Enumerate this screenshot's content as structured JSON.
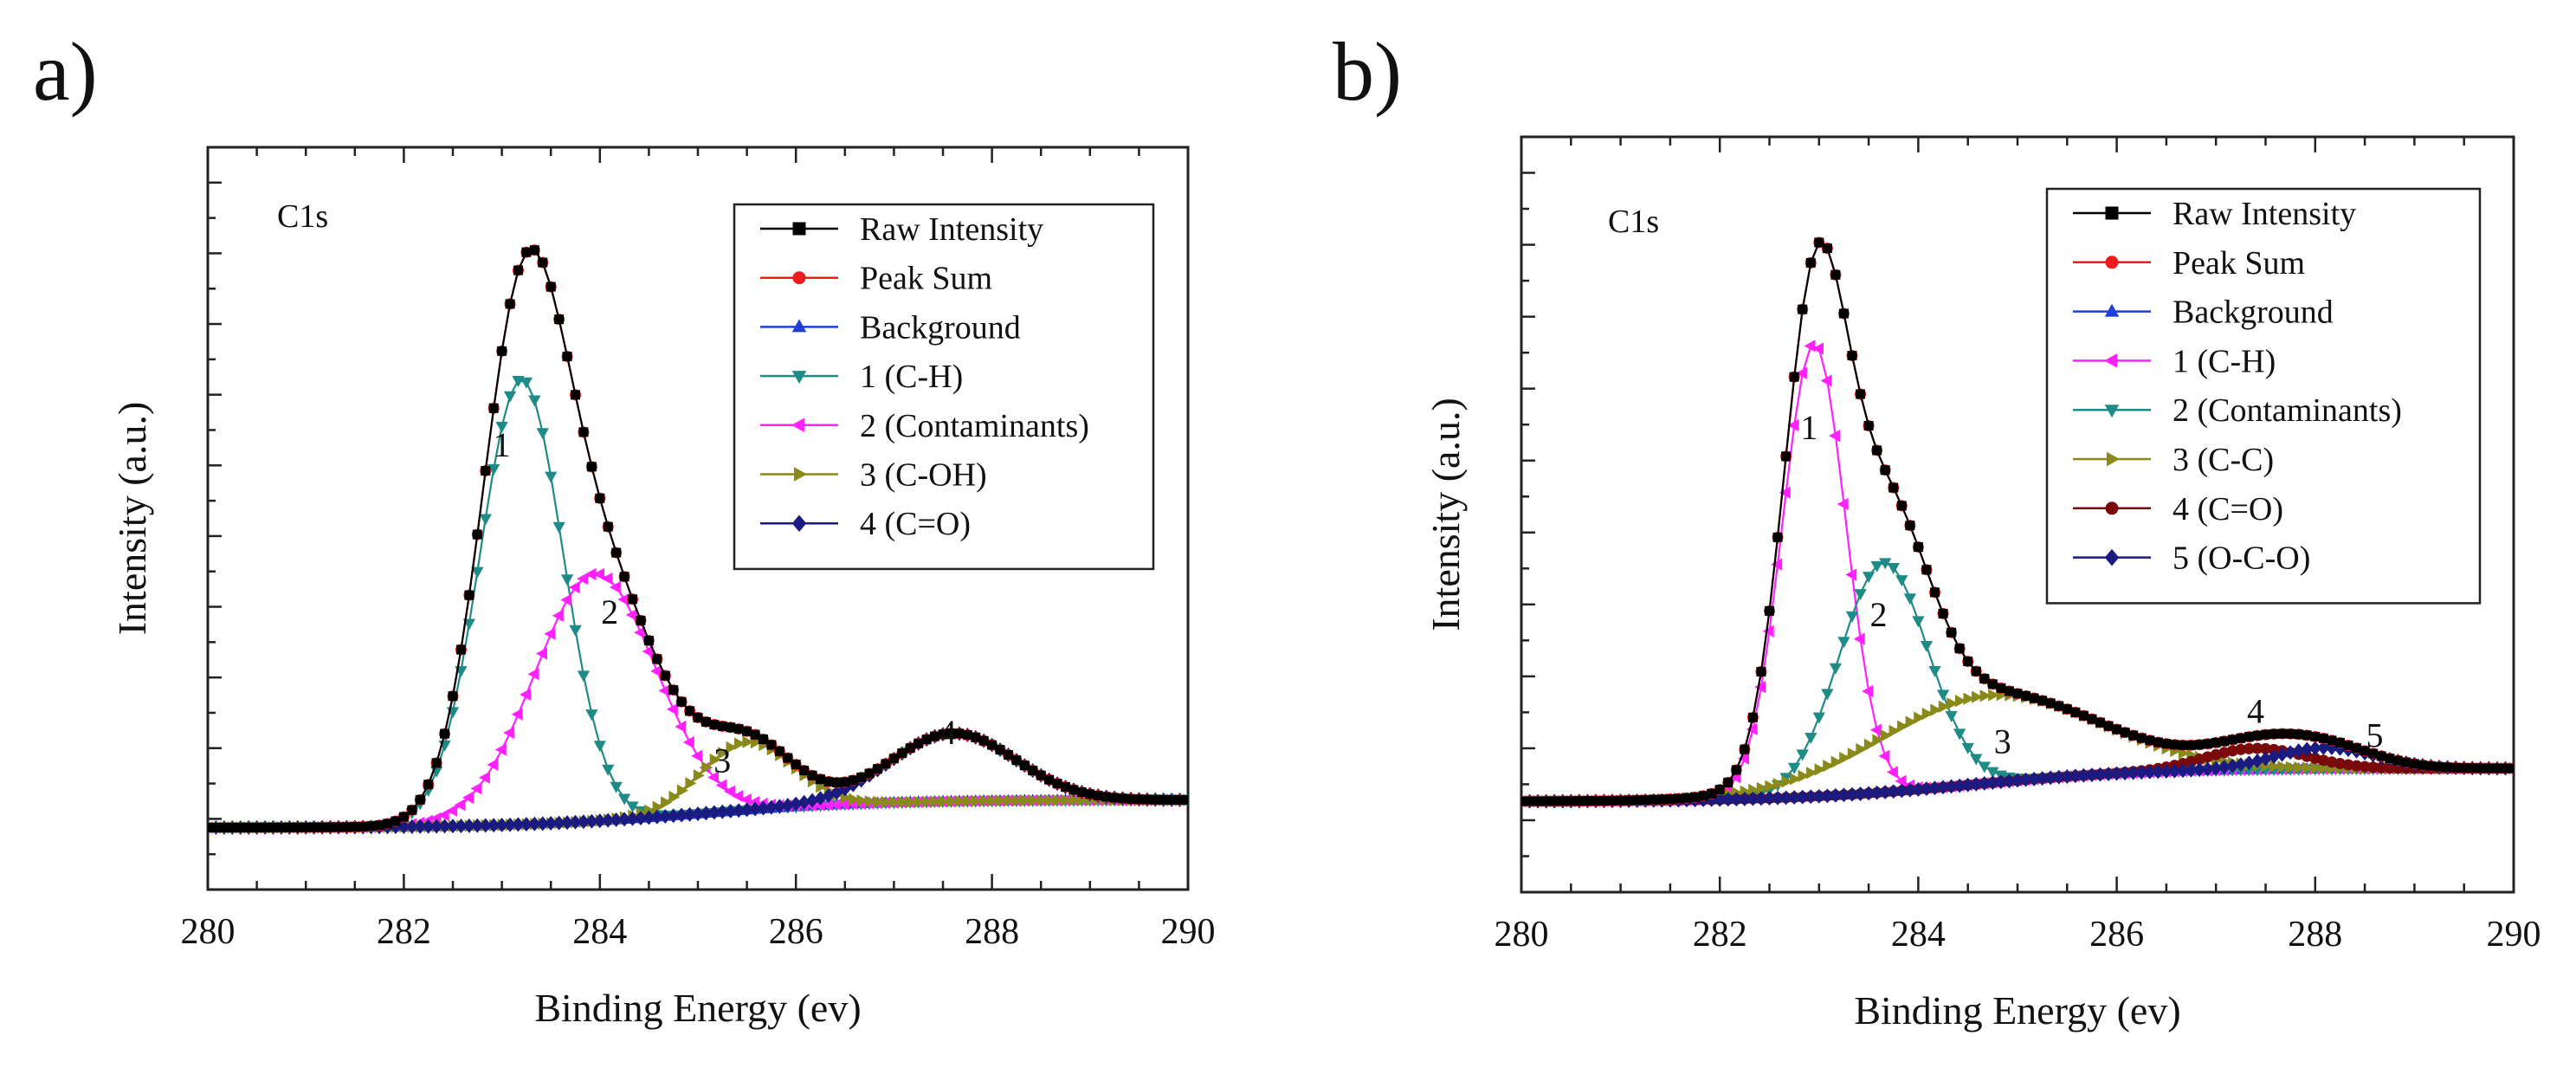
{
  "chart_data": [
    {
      "panel_label": "a)",
      "type": "line",
      "annotation": "C1s",
      "xlabel": "Binding Energy (ev)",
      "ylabel": "Intensity (a.u.)",
      "xlim": [
        280,
        290
      ],
      "ylim": [
        -0.1,
        1.1
      ],
      "xticks": [
        "280",
        "282",
        "284",
        "286",
        "288",
        "290"
      ],
      "legend_position": "top-right",
      "background": {
        "b0": 0.0,
        "b1": 0.045,
        "center": 285.0,
        "width": 0.9
      },
      "series": [
        {
          "name": "Raw Intensity",
          "kind": "sum",
          "color": "#000000",
          "marker": "square"
        },
        {
          "name": "Peak Sum",
          "kind": "sum",
          "color": "#ee1c1c",
          "marker": "circle"
        },
        {
          "name": "Background",
          "kind": "background",
          "color": "#1f3fd6",
          "marker": "triangle-up"
        },
        {
          "name": "1  (C-H)",
          "kind": "peak",
          "color": "#1e8b86",
          "marker": "triangle-down",
          "center": 283.2,
          "fwhm": 1.0,
          "height": 0.72
        },
        {
          "name": "2  (Contaminants)",
          "kind": "peak",
          "color": "#ff22ff",
          "marker": "triangle-left",
          "center": 283.95,
          "fwhm": 1.45,
          "height": 0.4
        },
        {
          "name": "3  (C-OH)",
          "kind": "peak",
          "color": "#8a8a1a",
          "marker": "triangle-right",
          "center": 285.5,
          "fwhm": 1.1,
          "height": 0.11
        },
        {
          "name": "4  (C=O)",
          "kind": "peak",
          "color": "#1a1a80",
          "marker": "diamond",
          "center": 287.6,
          "fwhm": 1.5,
          "height": 0.11
        }
      ],
      "peak_labels": [
        {
          "text": "1",
          "x": 283.0,
          "y": 0.6
        },
        {
          "text": "2",
          "x": 284.1,
          "y": 0.33
        },
        {
          "text": "3",
          "x": 285.25,
          "y": 0.09
        },
        {
          "text": "4",
          "x": 287.55,
          "y": 0.135
        }
      ]
    },
    {
      "panel_label": "b)",
      "type": "line",
      "annotation": "C1s",
      "xlabel": "Binding Energy (ev)",
      "ylabel": "Intensity (a.u.)",
      "xlim": [
        280,
        290
      ],
      "ylim": [
        -0.15,
        1.1
      ],
      "xticks": [
        "280",
        "282",
        "284",
        "286",
        "288",
        "290"
      ],
      "legend_position": "top-right",
      "background": {
        "b0": 0.0,
        "b1": 0.055,
        "center": 284.5,
        "width": 0.9
      },
      "series": [
        {
          "name": "Raw Intensity",
          "kind": "sum",
          "color": "#000000",
          "marker": "square"
        },
        {
          "name": "Peak Sum",
          "kind": "sum",
          "color": "#ee1c1c",
          "marker": "circle"
        },
        {
          "name": "Background",
          "kind": "background",
          "color": "#1f3fd6",
          "marker": "triangle-up"
        },
        {
          "name": "1  (C-H)",
          "kind": "peak",
          "color": "#ff22ff",
          "marker": "triangle-left",
          "center": 282.95,
          "fwhm": 0.75,
          "height": 0.75
        },
        {
          "name": "2  (Contaminants)",
          "kind": "peak",
          "color": "#1e8b86",
          "marker": "triangle-down",
          "center": 283.65,
          "fwhm": 1.05,
          "height": 0.38
        },
        {
          "name": "3  (C-C)",
          "kind": "peak",
          "color": "#8a8a1a",
          "marker": "triangle-right",
          "center": 284.7,
          "fwhm": 2.6,
          "height": 0.145
        },
        {
          "name": "4  (C=O)",
          "kind": "peak",
          "color": "#7a0a0a",
          "marker": "circle",
          "center": 287.4,
          "fwhm": 1.2,
          "height": 0.035
        },
        {
          "name": "5  (O-C-O)",
          "kind": "peak",
          "color": "#1a1a80",
          "marker": "diamond",
          "center": 288.1,
          "fwhm": 1.2,
          "height": 0.035
        }
      ],
      "peak_labels": [
        {
          "text": "1",
          "x": 282.9,
          "y": 0.6
        },
        {
          "text": "2",
          "x": 283.6,
          "y": 0.29
        },
        {
          "text": "3",
          "x": 284.85,
          "y": 0.08
        },
        {
          "text": "4",
          "x": 287.4,
          "y": 0.13
        },
        {
          "text": "5",
          "x": 288.6,
          "y": 0.09
        }
      ]
    }
  ]
}
